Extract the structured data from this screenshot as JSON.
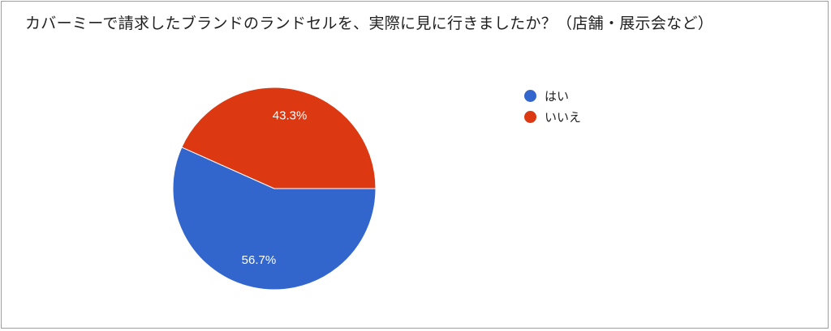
{
  "chart_data": {
    "type": "pie",
    "title": "カバーミーで請求したブランドのランドセルを、実際に見に行きましたか？（店舗・展示会など）",
    "categories": [
      "はい",
      "いいえ"
    ],
    "values": [
      56.7,
      43.3
    ],
    "labels": [
      "56.7%",
      "43.3%"
    ],
    "colors": [
      "#3366cc",
      "#dc3912"
    ],
    "legend_position": "right"
  }
}
